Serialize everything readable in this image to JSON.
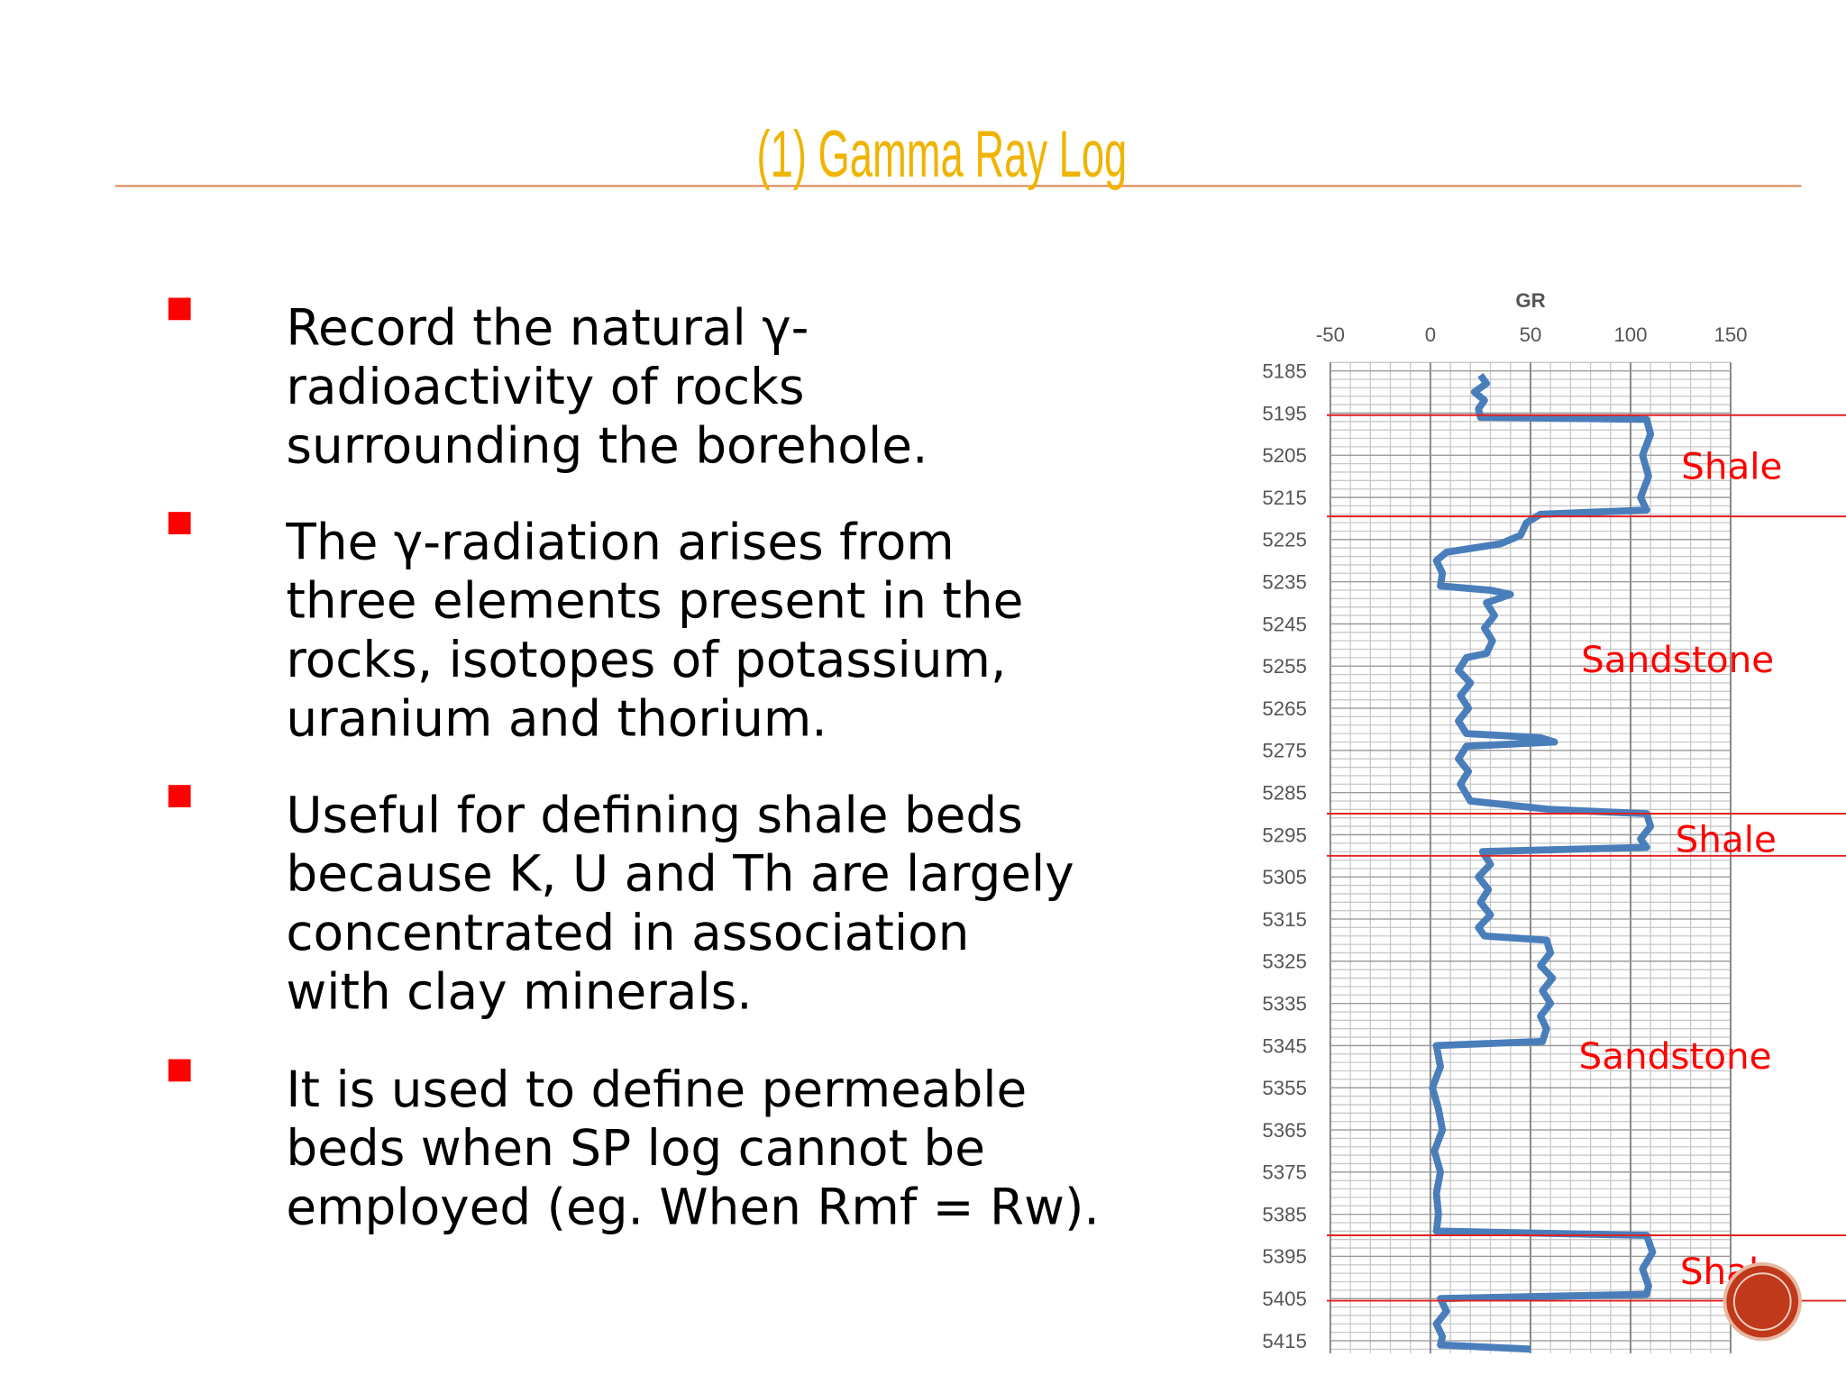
{
  "title": "(1) Gamma Ray Log",
  "bullets": [
    {
      "lines": [
        "Record the natural γ-",
        "radioactivity of rocks",
        "surrounding the borehole."
      ]
    },
    {
      "lines": [
        "The γ-radiation arises from",
        "three elements present in the",
        "rocks, isotopes of potassium,",
        "uranium and thorium."
      ]
    },
    {
      "lines": [
        "Useful for defining shale beds",
        "because K, U and Th are largely",
        "concentrated in association",
        "with clay minerals."
      ]
    },
    {
      "lines": [
        "It is used to define permeable",
        "beds when SP log cannot be",
        "employed (eg. When Rmf = Rw)."
      ]
    }
  ],
  "chart_data": {
    "type": "line",
    "x_label": "GR",
    "xlim": [
      -50,
      150
    ],
    "xticks": [
      -50,
      0,
      50,
      100,
      150
    ],
    "ylim": [
      5183,
      5418
    ],
    "yticks": [
      5185,
      5195,
      5205,
      5215,
      5225,
      5235,
      5245,
      5255,
      5265,
      5275,
      5285,
      5295,
      5305,
      5315,
      5325,
      5335,
      5345,
      5355,
      5365,
      5375,
      5385,
      5395,
      5405,
      5415
    ],
    "grid": true,
    "y": [
      5186,
      5188,
      5190,
      5192,
      5194,
      5196,
      5196.5,
      5200,
      5205,
      5210,
      5215,
      5218,
      5219,
      5221,
      5224,
      5226,
      5228,
      5230,
      5233,
      5236,
      5237,
      5238,
      5240,
      5243,
      5246,
      5249,
      5252,
      5253,
      5256,
      5259,
      5262,
      5265,
      5268,
      5271,
      5272,
      5273,
      5274,
      5277,
      5280,
      5283,
      5287,
      5289,
      5290,
      5293,
      5296,
      5298,
      5299,
      5302,
      5305,
      5308,
      5311,
      5314,
      5317,
      5319,
      5320,
      5323,
      5326,
      5329,
      5332,
      5335,
      5338,
      5341,
      5344,
      5345,
      5350,
      5355,
      5360,
      5365,
      5370,
      5375,
      5380,
      5385,
      5389,
      5390,
      5394,
      5398,
      5402,
      5404,
      5405,
      5408,
      5411,
      5414,
      5416,
      5417
    ],
    "series": [
      {
        "name": "GR",
        "color": "#4a7ebb",
        "values": [
          25,
          28,
          22,
          27,
          24,
          25,
          108,
          110,
          106,
          109,
          105,
          108,
          55,
          48,
          45,
          35,
          8,
          3,
          6,
          5,
          30,
          40,
          28,
          32,
          27,
          31,
          28,
          18,
          14,
          20,
          15,
          19,
          14,
          18,
          55,
          62,
          18,
          14,
          19,
          15,
          20,
          60,
          108,
          110,
          105,
          108,
          26,
          30,
          24,
          29,
          25,
          30,
          24,
          27,
          58,
          60,
          55,
          61,
          56,
          60,
          55,
          58,
          56,
          3,
          5,
          1,
          4,
          6,
          2,
          5,
          3,
          4,
          3,
          108,
          111,
          106,
          109,
          108,
          5,
          8,
          3,
          6,
          5,
          50
        ]
      }
    ],
    "boundaries": [
      5195.5,
      5219.5,
      5290,
      5300,
      5390,
      5405.5
    ],
    "boundary_color": "#e02020",
    "annotations": [
      "Shale",
      "Sandstone",
      "Shale",
      "Sandstone",
      "Shale"
    ],
    "annotation_color": "#ff0000"
  }
}
